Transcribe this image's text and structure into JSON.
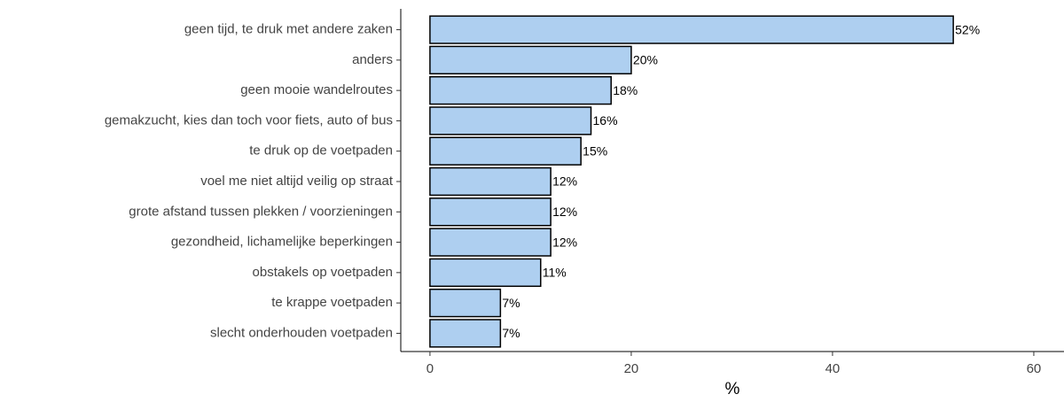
{
  "chart_data": {
    "type": "bar",
    "orientation": "horizontal",
    "categories": [
      "geen tijd, te druk met andere zaken",
      "anders",
      "geen mooie wandelroutes",
      "gemakzucht, kies dan toch voor fiets, auto of bus",
      "te druk op de voetpaden",
      "voel me niet altijd veilig op straat",
      "grote afstand tussen plekken / voorzieningen",
      "gezondheid, lichamelijke beperkingen",
      "obstakels op voetpaden",
      "te krappe voetpaden",
      "slecht onderhouden voetpaden"
    ],
    "values": [
      52,
      20,
      18,
      16,
      15,
      12,
      12,
      12,
      11,
      7,
      7
    ],
    "value_labels": [
      "52%",
      "20%",
      "18%",
      "16%",
      "15%",
      "12%",
      "12%",
      "12%",
      "11%",
      "7%",
      "7%"
    ],
    "color": "#aecff0",
    "xlabel": "%",
    "xlim": [
      -2.9,
      63
    ],
    "xticks": [
      0,
      20,
      40,
      60
    ],
    "grid": false
  }
}
